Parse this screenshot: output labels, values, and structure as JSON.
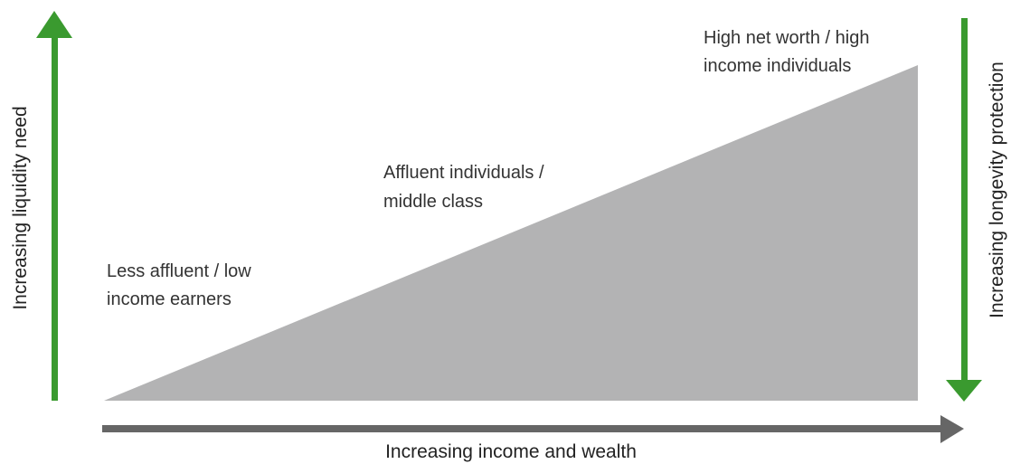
{
  "axes": {
    "x_label": "Increasing income and wealth",
    "left_label": "Increasing liquidity need",
    "right_label": "Increasing longevity protection"
  },
  "segments": [
    {
      "lines": [
        "Less affluent / low",
        "income earners"
      ]
    },
    {
      "lines": [
        "Affluent individuals /",
        "middle class"
      ]
    },
    {
      "lines": [
        "High net worth / high",
        "income individuals"
      ]
    }
  ]
}
